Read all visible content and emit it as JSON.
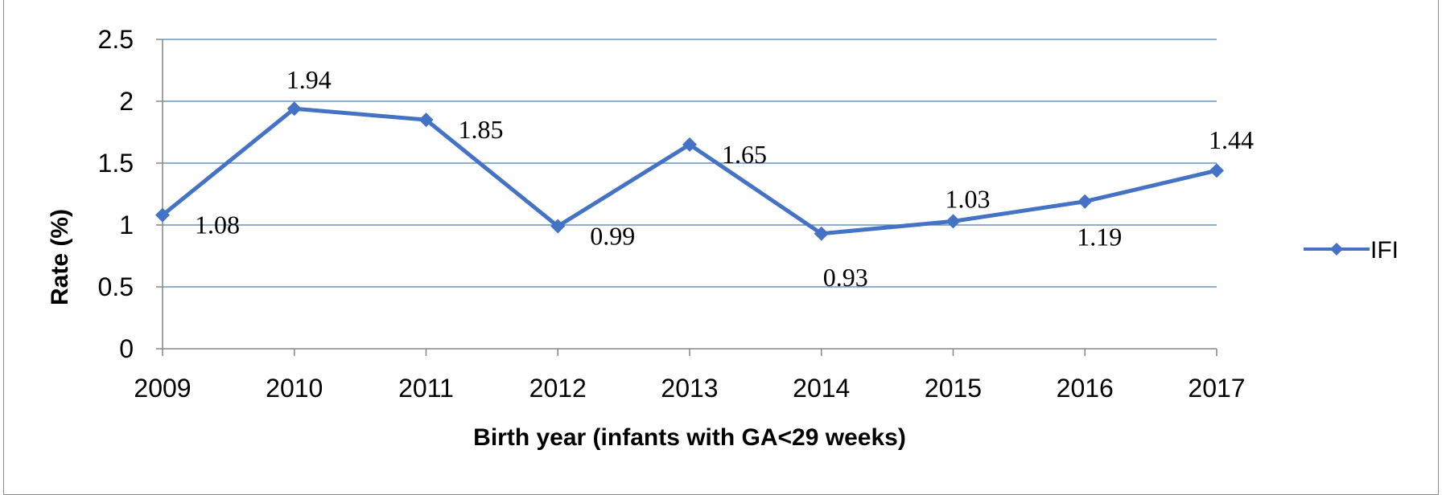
{
  "chart_data": {
    "type": "line",
    "x": [
      "2009",
      "2010",
      "2011",
      "2012",
      "2013",
      "2014",
      "2015",
      "2016",
      "2017"
    ],
    "series": [
      {
        "name": "IFI",
        "values": [
          1.08,
          1.94,
          1.85,
          0.99,
          1.65,
          0.93,
          1.03,
          1.19,
          1.44
        ],
        "data_labels": [
          "1.08",
          "1.94",
          "1.85",
          "0.99",
          "1.65",
          "0.93",
          "1.03",
          "1.19",
          "1.44"
        ],
        "color": "#4472C4",
        "marker": "diamond"
      }
    ],
    "title": "",
    "xlabel": "Birth year (infants with GA<29 weeks)",
    "ylabel": "Rate (%)",
    "ylim": [
      0,
      2.5
    ],
    "yticks": [
      "0",
      "0.5",
      "1",
      "1.5",
      "2",
      "2.5"
    ],
    "grid": true,
    "gridline_color": "#4a7ebb",
    "legend": "right"
  }
}
